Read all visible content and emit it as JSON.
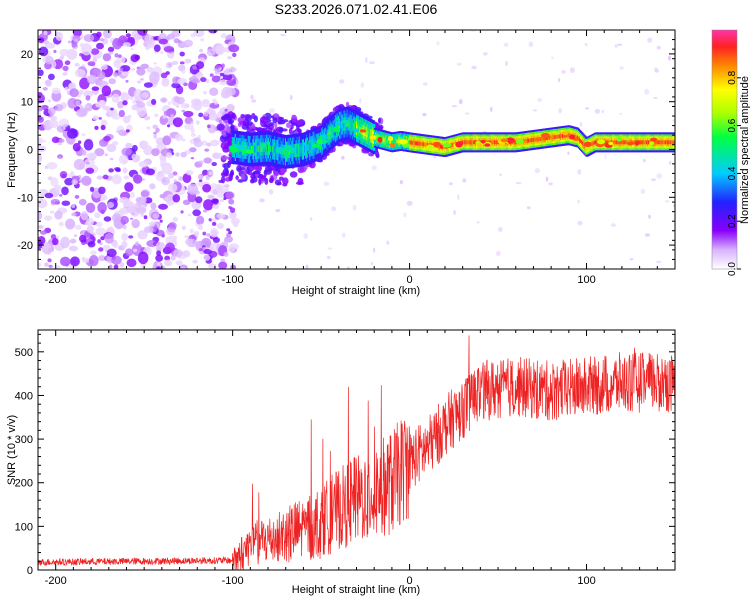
{
  "title": "S233.2026.071.02.41.E06",
  "chart_data": [
    {
      "type": "heatmap",
      "xlabel": "Height of straight line (km)",
      "ylabel": "Frequency (Hz)",
      "xlim": [
        -210,
        150
      ],
      "ylim": [
        -25,
        25
      ],
      "xticks": [
        -200,
        -100,
        0,
        100
      ],
      "yticks": [
        -20,
        -10,
        0,
        10,
        20
      ],
      "colorbar": {
        "label": "Normalized spectral amplitude",
        "range": [
          0,
          1
        ],
        "ticks": [
          "0.0",
          "0.2",
          "0.4",
          "0.6",
          "0.8"
        ]
      },
      "ridge": {
        "x": [
          -100,
          -90,
          -80,
          -70,
          -60,
          -50,
          -40,
          -35,
          -30,
          -25,
          -20,
          -15,
          -10,
          -5,
          0,
          10,
          20,
          30,
          40,
          50,
          60,
          70,
          80,
          90,
          95,
          100,
          105,
          110,
          120,
          130,
          140,
          150
        ],
        "y": [
          0.5,
          0,
          0.3,
          -0.5,
          0,
          1.5,
          5,
          5.5,
          4.5,
          3.5,
          2.5,
          2,
          1.5,
          1.8,
          1.5,
          1,
          0.5,
          1.5,
          1.5,
          1.5,
          1.5,
          2,
          2.5,
          3,
          2.5,
          0.5,
          1.5,
          1.5,
          1.5,
          1.5,
          1.5,
          1.5
        ]
      }
    },
    {
      "type": "line",
      "xlabel": "Height of straight line (km)",
      "ylabel": "SNR (10 * v/v)",
      "xlim": [
        -210,
        150
      ],
      "ylim": [
        0,
        550
      ],
      "xticks": [
        -200,
        -100,
        0,
        100
      ],
      "yticks": [
        0,
        100,
        200,
        300,
        400,
        500
      ],
      "color": "#ee2222",
      "trend": {
        "x": [
          -210,
          -100,
          -95,
          -90,
          -80,
          -70,
          -60,
          -50,
          -40,
          -30,
          -20,
          -10,
          0,
          10,
          20,
          30,
          40,
          60,
          80,
          100,
          120,
          150
        ],
        "y": [
          18,
          22,
          35,
          60,
          70,
          80,
          95,
          110,
          140,
          160,
          180,
          200,
          250,
          280,
          330,
          370,
          410,
          420,
          410,
          420,
          430,
          430
        ]
      }
    }
  ]
}
